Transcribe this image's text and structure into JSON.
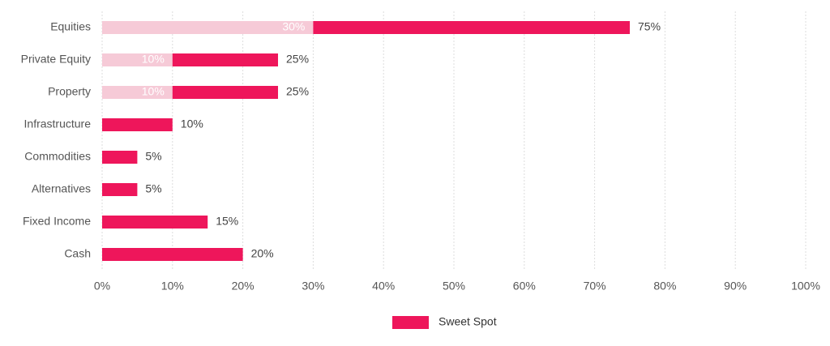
{
  "chart_data": {
    "type": "bar",
    "orientation": "horizontal",
    "categories": [
      "Equities",
      "Private Equity",
      "Property",
      "Infrastructure",
      "Commodities",
      "Alternatives",
      "Fixed Income",
      "Cash"
    ],
    "series": [
      {
        "color": "#f6cad7",
        "values": [
          30,
          10,
          10,
          null,
          null,
          null,
          null,
          null
        ],
        "value_labels": [
          "30%",
          "10%",
          "10%",
          null,
          null,
          null,
          null,
          null
        ]
      },
      {
        "name": "Sweet Spot",
        "color": "#ee165b",
        "values": [
          75,
          25,
          25,
          10,
          5,
          5,
          15,
          20
        ],
        "value_labels": [
          "75%",
          "25%",
          "25%",
          "10%",
          "5%",
          "5%",
          "15%",
          "20%"
        ]
      }
    ],
    "xlim": [
      0,
      100
    ],
    "xticks": [
      {
        "value": 0,
        "label": "0%"
      },
      {
        "value": 10,
        "label": "10%"
      },
      {
        "value": 20,
        "label": "20%"
      },
      {
        "value": 30,
        "label": "30%"
      },
      {
        "value": 40,
        "label": "40%"
      },
      {
        "value": 50,
        "label": "50%"
      },
      {
        "value": 60,
        "label": "60%"
      },
      {
        "value": 70,
        "label": "70%"
      },
      {
        "value": 80,
        "label": "80%"
      },
      {
        "value": 90,
        "label": "90%"
      },
      {
        "value": 100,
        "label": "100%"
      }
    ],
    "grid": true,
    "legend": "bottom"
  }
}
